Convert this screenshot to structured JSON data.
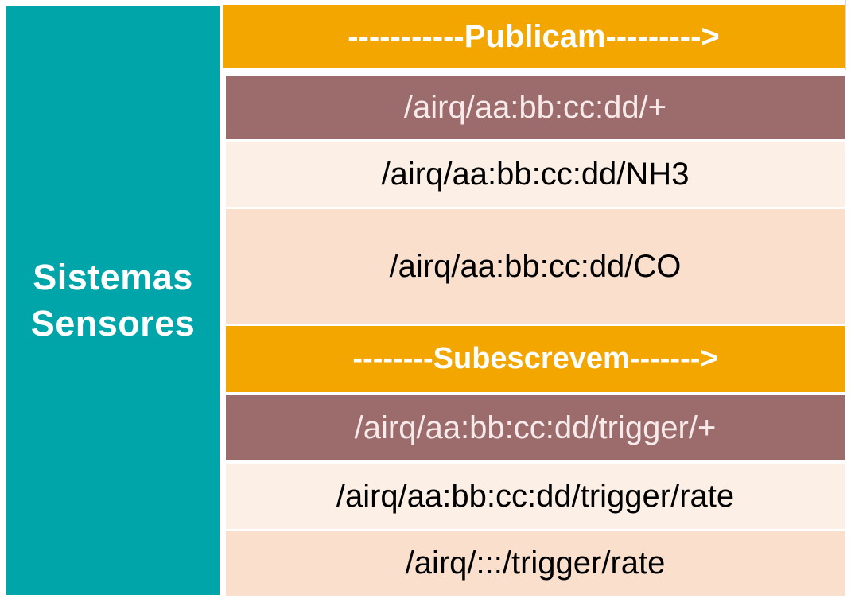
{
  "left_panel": {
    "line1": "Sistemas",
    "line2": "Sensores"
  },
  "publish": {
    "header": "-----------Publicam--------->",
    "topics": [
      "/airq/aa:bb:cc:dd/+",
      "/airq/aa:bb:cc:dd/NH3",
      "/airq/aa:bb:cc:dd/CO"
    ]
  },
  "subscribe": {
    "header": "--------Subescrevem------->",
    "topics": [
      "/airq/aa:bb:cc:dd/trigger/+",
      "/airq/aa:bb:cc:dd/trigger/rate",
      "/airq/:::/trigger/rate"
    ]
  },
  "colors": {
    "left_panel": "#00a5aa",
    "header": "#f3a600",
    "wildcard_row": "#9c6b6b",
    "light_row": "#fcefe5",
    "mid_row": "#f9dfcc"
  }
}
